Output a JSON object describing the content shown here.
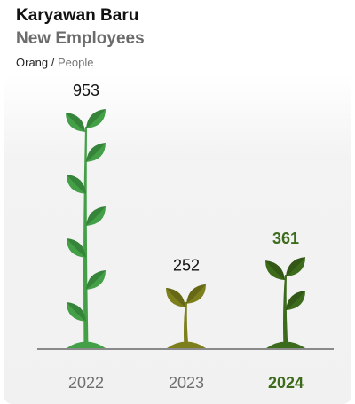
{
  "chart_data": {
    "type": "bar",
    "title": "Karyawan Baru",
    "subtitle": "New Employees",
    "unit": "Orang",
    "unit_separator": "/",
    "unit_translation": "People",
    "categories": [
      "2022",
      "2023",
      "2024"
    ],
    "values": [
      953,
      252,
      361
    ],
    "colors": [
      "#43a047",
      "#7d7f1c",
      "#3d6b1c"
    ],
    "highlight": "2024"
  }
}
